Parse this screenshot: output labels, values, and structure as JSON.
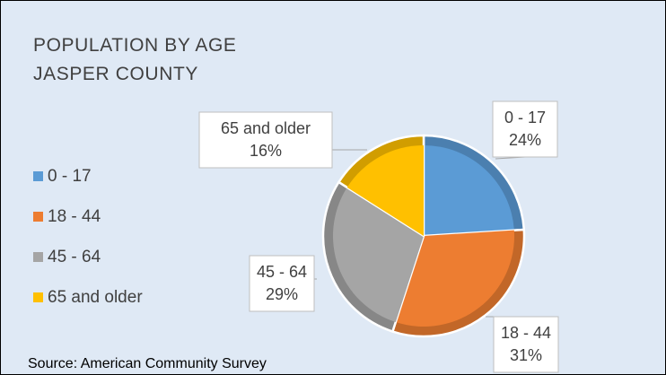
{
  "chart_data": {
    "type": "pie",
    "title": "POPULATION BY AGE",
    "subtitle": "JASPER COUNTY",
    "categories": [
      "0 - 17",
      "18 - 44",
      "45 - 64",
      "65 and older"
    ],
    "values": [
      24,
      31,
      29,
      16
    ],
    "value_labels": [
      "24%",
      "31%",
      "29%",
      "16%"
    ],
    "unit": "%",
    "colors": [
      "#5b9bd5",
      "#ed7d31",
      "#a5a5a5",
      "#ffc000"
    ],
    "legend_position": "left",
    "data_labels": "callouts with category and percent"
  },
  "source": "Source: American Community Survey",
  "background_color": "#dfe9f5"
}
